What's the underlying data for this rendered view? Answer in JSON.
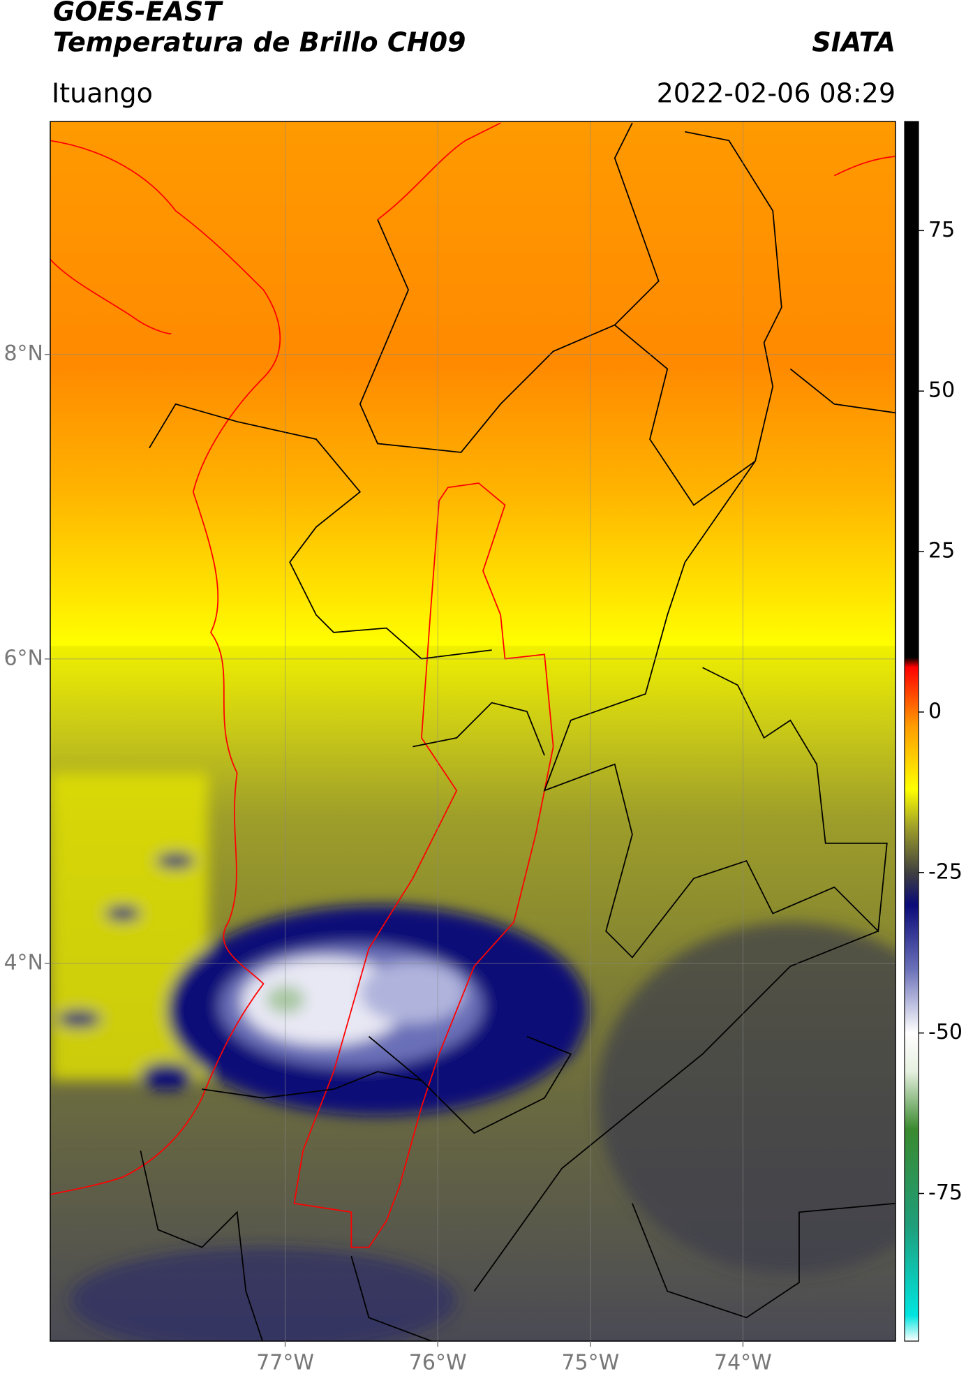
{
  "header": {
    "title": "GOES-EAST",
    "subtitle": "Temperatura de Brillo CH09",
    "brand": "SIATA",
    "location": "Ituango",
    "datetime": "2022-02-06 08:29"
  },
  "map": {
    "xlim": [
      -78.54,
      -73.0
    ],
    "ylim": [
      1.52,
      9.53
    ],
    "xticks": [
      {
        "value": -77,
        "label": "77°W"
      },
      {
        "value": -76,
        "label": "76°W"
      },
      {
        "value": -75,
        "label": "75°W"
      },
      {
        "value": -74,
        "label": "74°W"
      }
    ],
    "yticks": [
      {
        "value": 4,
        "label": "4°N"
      },
      {
        "value": 6,
        "label": "6°N"
      },
      {
        "value": 8,
        "label": "8°N"
      }
    ],
    "grid": true
  },
  "colorbar": {
    "lim": [
      -98,
      92
    ],
    "ticks": [
      75,
      50,
      25,
      0,
      -25,
      -50,
      -75
    ],
    "colors": [
      {
        "value": -98,
        "color": "#ffffff"
      },
      {
        "value": -94,
        "color": "#00e5e0"
      },
      {
        "value": -80,
        "color": "#1f9e7a"
      },
      {
        "value": -65,
        "color": "#3a8a2e"
      },
      {
        "value": -56,
        "color": "#e6f0e0"
      },
      {
        "value": -50,
        "color": "#ffffff"
      },
      {
        "value": -40,
        "color": "#6a70b8"
      },
      {
        "value": -30,
        "color": "#0a0a78"
      },
      {
        "value": -25,
        "color": "#404040"
      },
      {
        "value": -18,
        "color": "#9e9e2a"
      },
      {
        "value": -12,
        "color": "#ffff00"
      },
      {
        "value": -2,
        "color": "#ff9a00"
      },
      {
        "value": 7,
        "color": "#ff0000"
      },
      {
        "value": 8.5,
        "color": "#000000"
      },
      {
        "value": 92,
        "color": "#000000"
      }
    ]
  }
}
